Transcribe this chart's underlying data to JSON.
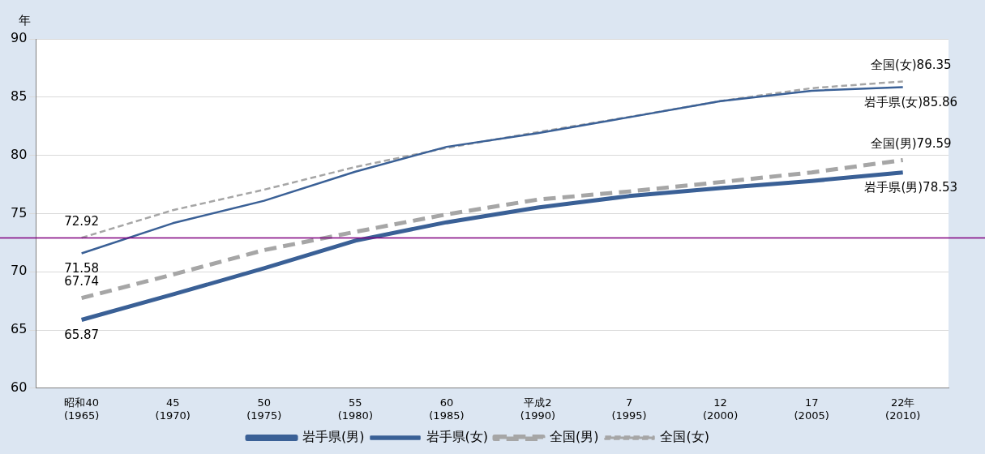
{
  "chart_data": {
    "type": "line",
    "ylabel": "年",
    "categories": [
      "昭和40\n(1965)",
      "45\n(1970)",
      "50\n(1975)",
      "55\n(1980)",
      "60\n(1985)",
      "平成2\n(1990)",
      "7\n(1995)",
      "12\n(2000)",
      "17\n(2005)",
      "22年\n(2010)"
    ],
    "series": [
      {
        "name": "岩手県(男)",
        "color": "#3a6096",
        "line_style": "solid",
        "values": [
          65.87,
          68.05,
          70.3,
          72.67,
          74.25,
          75.52,
          76.5,
          77.19,
          77.8,
          78.53
        ]
      },
      {
        "name": "岩手県(女)",
        "color": "#3a6096",
        "line_style": "solid",
        "values": [
          71.58,
          74.17,
          76.1,
          78.6,
          80.73,
          81.9,
          83.27,
          84.66,
          85.55,
          85.86
        ]
      },
      {
        "name": "全国(男)",
        "color": "#a6a6a6",
        "line_style": "dashed",
        "values": [
          67.74,
          69.76,
          71.86,
          73.43,
          74.93,
          76.2,
          76.9,
          77.7,
          78.53,
          79.59
        ]
      },
      {
        "name": "全国(女)",
        "color": "#a6a6a6",
        "line_style": "dashed",
        "values": [
          72.92,
          75.29,
          77.05,
          79.0,
          80.64,
          82.0,
          83.3,
          84.66,
          85.77,
          86.35
        ]
      }
    ],
    "ylim": [
      60,
      90
    ],
    "yticks": [
      60,
      65,
      70,
      75,
      80,
      85,
      90
    ],
    "grid": "y",
    "legend": "bottom",
    "marker": "none",
    "ref_lines": [
      {
        "axis": "y",
        "value": 72.9,
        "color": "#800080"
      }
    ],
    "annotations": [
      {
        "text": "72.92",
        "x": "昭和40\n(1965)",
        "y": 72.92
      },
      {
        "text": "71.58",
        "x": "昭和40\n(1965)",
        "y": 71.58
      },
      {
        "text": "67.74",
        "x": "昭和40\n(1965)",
        "y": 67.74
      },
      {
        "text": "65.87",
        "x": "昭和40\n(1965)",
        "y": 65.87
      },
      {
        "text": "全国(女)86.35",
        "x": "22年\n(2010)",
        "y": 86.35
      },
      {
        "text": "岩手県(女)85.86",
        "x": "22年\n(2010)",
        "y": 85.86
      },
      {
        "text": "全国(男)79.59",
        "x": "22年\n(2010)",
        "y": 79.59
      },
      {
        "text": "岩手県(男)78.53",
        "x": "22年\n(2010)",
        "y": 78.53
      }
    ]
  }
}
